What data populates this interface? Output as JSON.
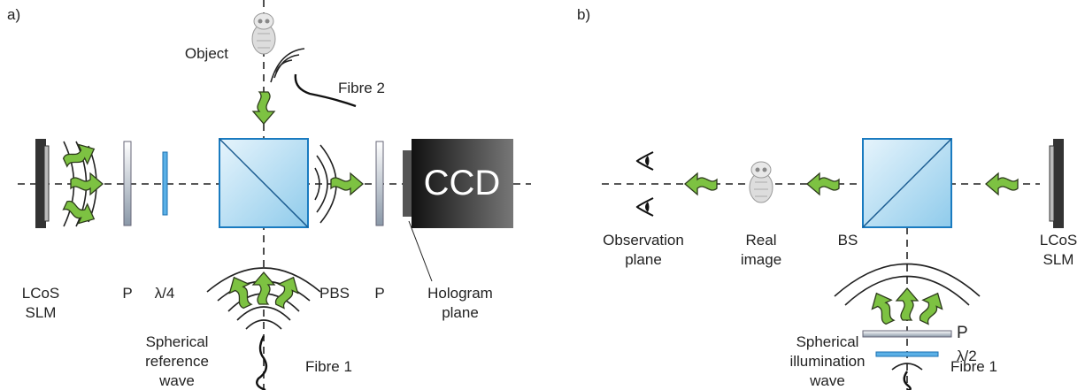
{
  "panel_a": {
    "label": "a)",
    "object": "Object",
    "fibre_2": "Fibre 2",
    "ccd": "CCD",
    "slm": [
      "LCoS",
      "SLM"
    ],
    "polarizer_1": "P",
    "quarter_wave": "λ/4",
    "pbs": "PBS",
    "polarizer_2": "P",
    "hologram_plane": [
      "Hologram",
      "plane"
    ],
    "reference_wave": [
      "Spherical",
      "reference",
      "wave"
    ],
    "fibre_1": "Fibre 1"
  },
  "panel_b": {
    "label": "b)",
    "observation_plane": [
      "Observation",
      "plane"
    ],
    "real_image": [
      "Real",
      "image"
    ],
    "bs": "BS",
    "slm": [
      "LCoS",
      "SLM"
    ],
    "polarizer": "P",
    "half_wave": "λ/2",
    "illumination_wave": [
      "Spherical",
      "illumination",
      "wave"
    ],
    "fibre_1": "Fibre 1"
  }
}
